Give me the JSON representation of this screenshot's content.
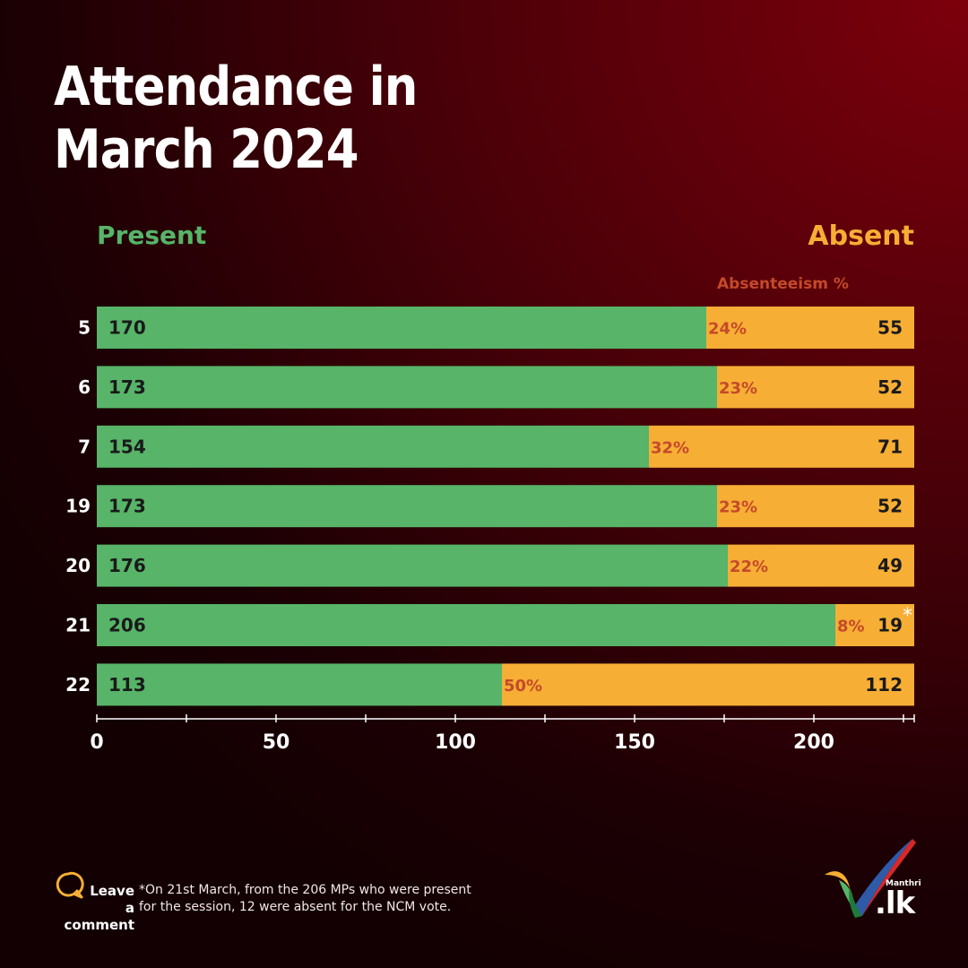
{
  "title_line1": "Attendance in",
  "title_line2": "March 2024",
  "legend": {
    "present": "Present",
    "absent": "Absent",
    "absenteeism": "Absenteeism %"
  },
  "colors": {
    "present": "#57b468",
    "absent": "#f7ae35",
    "percent_text": "#c44a2a"
  },
  "chart_data": {
    "type": "bar",
    "orientation": "horizontal",
    "stacked": true,
    "categories": [
      "5",
      "6",
      "7",
      "19",
      "20",
      "21",
      "22"
    ],
    "series": [
      {
        "name": "Present",
        "values": [
          170,
          173,
          154,
          173,
          176,
          206,
          113
        ]
      },
      {
        "name": "Absent",
        "values": [
          55,
          52,
          71,
          52,
          49,
          19,
          112
        ]
      }
    ],
    "absenteeism_pct": [
      "24%",
      "23%",
      "32%",
      "23%",
      "22%",
      "8%",
      "50%"
    ],
    "markers": [
      "",
      "",
      "",
      "",
      "",
      "*",
      ""
    ],
    "xticks": [
      0,
      50,
      100,
      150,
      200
    ],
    "xlim": [
      0,
      228
    ],
    "legend_position": "top"
  },
  "footer": {
    "leave_line1": "Leave",
    "leave_line2": "a comment",
    "note": "*On 21st March, from the 206 MPs who were present for the session, 12 were absent for the NCM vote.",
    "icon": "comment-bubble-icon"
  },
  "logo": {
    "small_text": "Manthri",
    "domain_text": ".lk"
  }
}
